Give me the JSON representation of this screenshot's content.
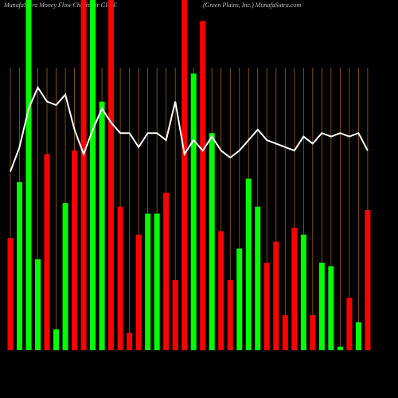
{
  "chart_data": {
    "type": "bar",
    "title": "MunafaSutra  Money Flow  Charts for GPRE",
    "subtitle": "(Green  Plains,  Inc.) MunafaSutra.com",
    "categories": [
      null,
      null,
      null,
      null,
      null,
      null,
      null,
      null,
      null,
      null,
      null,
      null,
      null,
      null,
      null,
      null,
      null,
      null,
      null,
      null,
      null,
      null,
      null,
      null,
      null,
      null,
      null,
      null,
      null,
      null,
      null,
      null,
      null,
      null,
      null,
      null,
      null,
      null,
      null,
      null
    ],
    "values": [
      32,
      48,
      100,
      26,
      56,
      6,
      42,
      57,
      100,
      100,
      71,
      100,
      41,
      5,
      33,
      39,
      39,
      45,
      20,
      100,
      79,
      94,
      62,
      34,
      20,
      29,
      49,
      41,
      25,
      31,
      10,
      35,
      33,
      10,
      25,
      24,
      1,
      15,
      8,
      40
    ],
    "colors": [
      "#ff0000",
      "#00ff00",
      "#00ff00",
      "#00ff00",
      "#ff0000",
      "#00ff00",
      "#00ff00",
      "#ff0000",
      "#ff0000",
      "#00ff00",
      "#00ff00",
      "#ff0000",
      "#ff0000",
      "#ff0000",
      "#ff0000",
      "#00ff00",
      "#00ff00",
      "#ff0000",
      "#ff0000",
      "#ff0000",
      "#00ff00",
      "#ff0000",
      "#00ff00",
      "#ff0000",
      "#ff0000",
      "#00ff00",
      "#00ff00",
      "#00ff00",
      "#ff0000",
      "#ff0000",
      "#ff0000",
      "#ff0000",
      "#00ff00",
      "#ff0000",
      "#00ff00",
      "#00ff00",
      "#00ff00",
      "#ff0000",
      "#00ff00",
      "#ff0000"
    ],
    "line_values": [
      51,
      58,
      69,
      75,
      71,
      70,
      73,
      63,
      56,
      63,
      69,
      65,
      62,
      62,
      58,
      62,
      62,
      60,
      71,
      56,
      60,
      57,
      61,
      57,
      55,
      57,
      60,
      63,
      60,
      59,
      58,
      57,
      61,
      59,
      62,
      61,
      62,
      61,
      62,
      57
    ],
    "line_color": "#ffffff"
  }
}
